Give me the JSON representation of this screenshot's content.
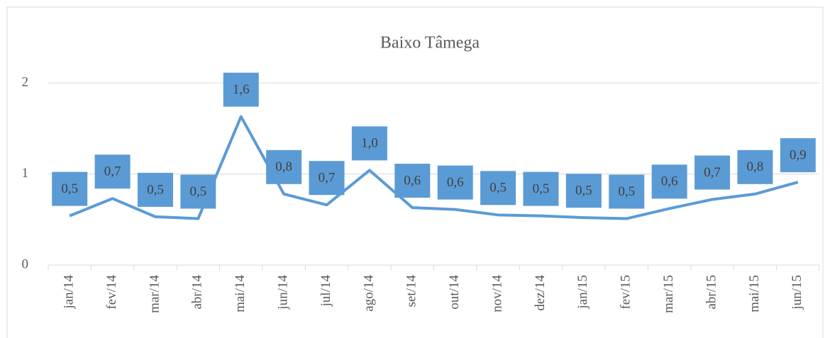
{
  "chart_data": {
    "type": "line",
    "title": "Baixo Tâmega",
    "categories": [
      "jan/14",
      "fev/14",
      "mar/14",
      "abr/14",
      "mai/14",
      "jun/14",
      "jul/14",
      "ago/14",
      "set/14",
      "out/14",
      "nov/14",
      "dez/14",
      "jan/15",
      "fev/15",
      "mar/15",
      "abr/15",
      "mai/15",
      "jun/15"
    ],
    "series": [
      {
        "name": "Baixo Tâmega",
        "color": "#5b9bd5",
        "values": [
          0.54,
          0.73,
          0.53,
          0.51,
          1.63,
          0.78,
          0.66,
          1.04,
          0.63,
          0.61,
          0.55,
          0.54,
          0.52,
          0.51,
          0.62,
          0.72,
          0.78,
          0.91
        ],
        "value_labels": [
          "0,5",
          "0,7",
          "0,5",
          "0,5",
          "1,6",
          "0,8",
          "0,7",
          "1,0",
          "0,6",
          "0,6",
          "0,5",
          "0,5",
          "0,5",
          "0,5",
          "0,6",
          "0,7",
          "0,8",
          "0,9"
        ]
      }
    ],
    "ylim": [
      0,
      2
    ],
    "yticks": [
      0,
      1,
      2
    ],
    "grid": true
  }
}
